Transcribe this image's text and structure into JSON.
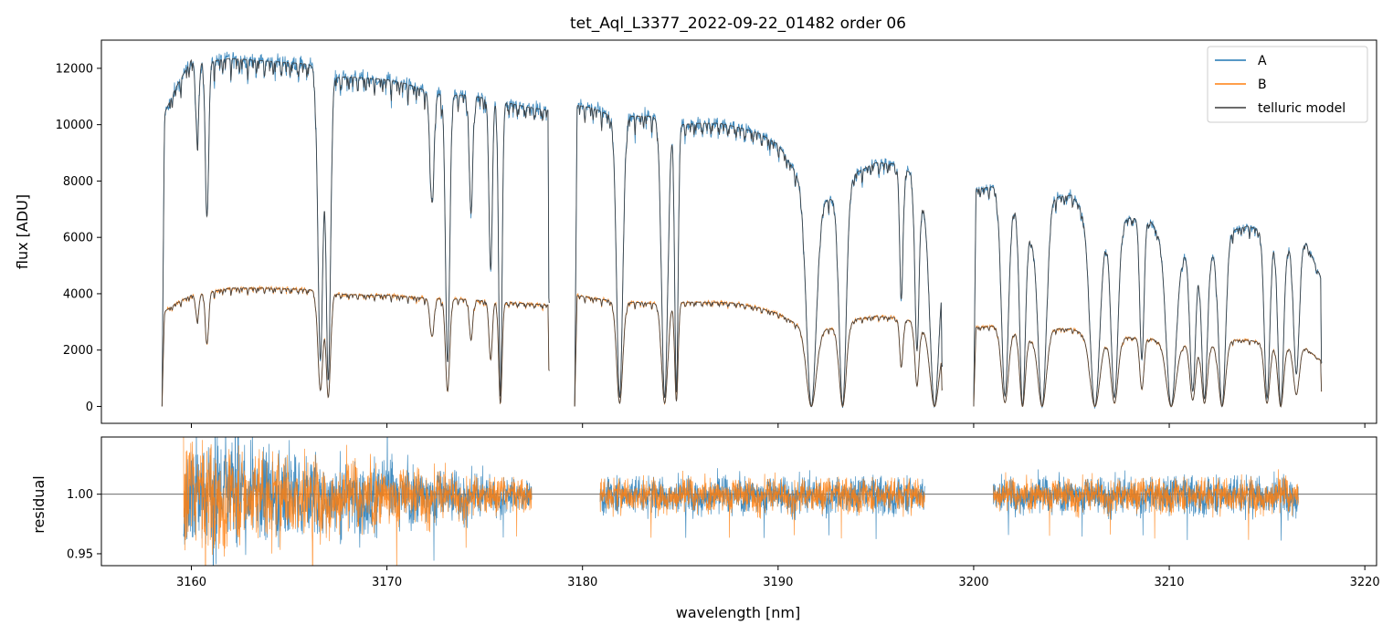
{
  "chart_data": [
    {
      "type": "line",
      "panel": "top",
      "title": "tet_Aql_L3377_2022-09-22_01482  order 06",
      "xlabel": "",
      "ylabel": "flux [ADU]",
      "xlim": [
        3155.4,
        3220.6
      ],
      "ylim": [
        -600,
        13000
      ],
      "x_ticks": [
        3160,
        3170,
        3180,
        3190,
        3200,
        3210,
        3220
      ],
      "x_tick_labels_visible": false,
      "y_ticks": [
        0,
        2000,
        4000,
        6000,
        8000,
        10000,
        12000
      ],
      "y_tick_labels": [
        "0",
        "2000",
        "4000",
        "6000",
        "8000",
        "10000",
        "12000"
      ],
      "legend": {
        "placement": "top-right",
        "entries": [
          "A",
          "B",
          "telluric model"
        ]
      },
      "segments": [
        {
          "range": [
            3158.5,
            3178.3
          ],
          "anchors_A": [
            [
              3158.5,
              10200
            ],
            [
              3159.2,
              11300
            ],
            [
              3160,
              12300
            ],
            [
              3161,
              12250
            ],
            [
              3162,
              12350
            ],
            [
              3163,
              12300
            ],
            [
              3164,
              12250
            ],
            [
              3165,
              12200
            ],
            [
              3166,
              12150
            ],
            [
              3167,
              11650
            ],
            [
              3168,
              11700
            ],
            [
              3169,
              11650
            ],
            [
              3170,
              11600
            ],
            [
              3171,
              11450
            ],
            [
              3172,
              11200
            ],
            [
              3173,
              11050
            ],
            [
              3174,
              11050
            ],
            [
              3175,
              10950
            ],
            [
              3176,
              10800
            ],
            [
              3177,
              10650
            ],
            [
              3178.3,
              10500
            ]
          ],
          "anchors_B": [
            [
              3158.5,
              3300
            ],
            [
              3159.2,
              3650
            ],
            [
              3160,
              3950
            ],
            [
              3162,
              4200
            ],
            [
              3164,
              4200
            ],
            [
              3166,
              4150
            ],
            [
              3167,
              4000
            ],
            [
              3169,
              3950
            ],
            [
              3170,
              3950
            ],
            [
              3172,
              3850
            ],
            [
              3174,
              3800
            ],
            [
              3176,
              3700
            ],
            [
              3178.3,
              3600
            ]
          ]
        },
        {
          "range": [
            3179.6,
            3198.4
          ],
          "anchors_A": [
            [
              3179.6,
              10700
            ],
            [
              3180.5,
              10600
            ],
            [
              3181.5,
              10300
            ],
            [
              3182.5,
              10300
            ],
            [
              3183.5,
              10300
            ],
            [
              3185,
              10000
            ],
            [
              3186,
              10050
            ],
            [
              3187,
              10050
            ],
            [
              3188,
              9900
            ],
            [
              3189,
              9700
            ],
            [
              3190,
              9300
            ],
            [
              3191,
              8200
            ],
            [
              3192,
              7300
            ],
            [
              3193,
              7400
            ],
            [
              3194,
              8300
            ],
            [
              3195,
              8650
            ],
            [
              3196,
              8600
            ],
            [
              3197,
              8200
            ],
            [
              3198.4,
              5000
            ]
          ],
          "anchors_B": [
            [
              3179.6,
              3950
            ],
            [
              3181,
              3800
            ],
            [
              3182.5,
              3700
            ],
            [
              3184,
              3650
            ],
            [
              3185,
              3700
            ],
            [
              3186,
              3700
            ],
            [
              3187,
              3700
            ],
            [
              3188,
              3650
            ],
            [
              3189,
              3500
            ],
            [
              3190,
              3300
            ],
            [
              3191,
              2900
            ],
            [
              3192,
              2700
            ],
            [
              3193,
              2800
            ],
            [
              3194,
              3100
            ],
            [
              3195,
              3200
            ],
            [
              3196,
              3150
            ],
            [
              3197,
              3000
            ],
            [
              3198.4,
              2100
            ]
          ]
        },
        {
          "range": [
            3200.0,
            3217.8
          ],
          "anchors_A": [
            [
              3200,
              7700
            ],
            [
              3201,
              7800
            ],
            [
              3202,
              7300
            ],
            [
              3203,
              6000
            ],
            [
              3204,
              7400
            ],
            [
              3205,
              7500
            ],
            [
              3206,
              6600
            ],
            [
              3207,
              6300
            ],
            [
              3208,
              6700
            ],
            [
              3209,
              6600
            ],
            [
              3210,
              5700
            ],
            [
              3211,
              5400
            ],
            [
              3212,
              5300
            ],
            [
              3213,
              6200
            ],
            [
              3214,
              6400
            ],
            [
              3215,
              6200
            ],
            [
              3216,
              5700
            ],
            [
              3217,
              5800
            ],
            [
              3217.8,
              4500
            ]
          ],
          "anchors_B": [
            [
              3200,
              2800
            ],
            [
              3201,
              2850
            ],
            [
              3202,
              2700
            ],
            [
              3203,
              2400
            ],
            [
              3204,
              2750
            ],
            [
              3205,
              2750
            ],
            [
              3206,
              2500
            ],
            [
              3207,
              2400
            ],
            [
              3208,
              2450
            ],
            [
              3209,
              2400
            ],
            [
              3210,
              2250
            ],
            [
              3211,
              2200
            ],
            [
              3212,
              2150
            ],
            [
              3213,
              2350
            ],
            [
              3214,
              2350
            ],
            [
              3215,
              2250
            ],
            [
              3216,
              2100
            ],
            [
              3217,
              2050
            ],
            [
              3217.8,
              1600
            ]
          ]
        }
      ],
      "absorption_lines": [
        {
          "center": 3160.3,
          "width": 0.12,
          "depth": 0.22
        },
        {
          "center": 3160.8,
          "width": 0.12,
          "depth": 0.45
        },
        {
          "center": 3166.6,
          "width": 0.18,
          "depth": 0.86
        },
        {
          "center": 3167.0,
          "width": 0.16,
          "depth": 0.92
        },
        {
          "center": 3172.3,
          "width": 0.15,
          "depth": 0.35
        },
        {
          "center": 3173.1,
          "width": 0.15,
          "depth": 0.86
        },
        {
          "center": 3174.3,
          "width": 0.12,
          "depth": 0.38
        },
        {
          "center": 3175.3,
          "width": 0.12,
          "depth": 0.55
        },
        {
          "center": 3175.8,
          "width": 0.12,
          "depth": 0.97
        },
        {
          "center": 3181.9,
          "width": 0.22,
          "depth": 0.97
        },
        {
          "center": 3184.2,
          "width": 0.22,
          "depth": 0.97
        },
        {
          "center": 3184.8,
          "width": 0.12,
          "depth": 0.95
        },
        {
          "center": 3191.7,
          "width": 0.35,
          "depth": 1.0
        },
        {
          "center": 3193.3,
          "width": 0.25,
          "depth": 1.0
        },
        {
          "center": 3196.3,
          "width": 0.12,
          "depth": 0.55
        },
        {
          "center": 3197.1,
          "width": 0.15,
          "depth": 0.75
        },
        {
          "center": 3198.0,
          "width": 0.3,
          "depth": 1.0
        },
        {
          "center": 3201.6,
          "width": 0.25,
          "depth": 0.95
        },
        {
          "center": 3202.5,
          "width": 0.2,
          "depth": 1.0
        },
        {
          "center": 3203.5,
          "width": 0.3,
          "depth": 1.0
        },
        {
          "center": 3206.2,
          "width": 0.35,
          "depth": 1.0
        },
        {
          "center": 3207.2,
          "width": 0.25,
          "depth": 0.95
        },
        {
          "center": 3208.6,
          "width": 0.15,
          "depth": 0.75
        },
        {
          "center": 3210.1,
          "width": 0.35,
          "depth": 1.0
        },
        {
          "center": 3211.2,
          "width": 0.2,
          "depth": 0.9
        },
        {
          "center": 3211.8,
          "width": 0.2,
          "depth": 0.95
        },
        {
          "center": 3212.7,
          "width": 0.25,
          "depth": 1.0
        },
        {
          "center": 3215.0,
          "width": 0.2,
          "depth": 0.95
        },
        {
          "center": 3215.7,
          "width": 0.2,
          "depth": 1.0
        },
        {
          "center": 3216.5,
          "width": 0.2,
          "depth": 0.8
        }
      ],
      "series": [
        {
          "name": "A",
          "color": "#1f77b4"
        },
        {
          "name": "B",
          "color": "#ff7f0e"
        },
        {
          "name": "telluric model",
          "color": "#3a3a3a"
        }
      ]
    },
    {
      "type": "line",
      "panel": "bottom",
      "xlabel": "wavelength [nm]",
      "ylabel": "residual",
      "xlim": [
        3155.4,
        3220.6
      ],
      "ylim": [
        0.94,
        1.048
      ],
      "x_ticks": [
        3160,
        3170,
        3180,
        3190,
        3200,
        3210,
        3220
      ],
      "x_tick_labels": [
        "3160",
        "3170",
        "3180",
        "3190",
        "3200",
        "3210",
        "3220"
      ],
      "y_ticks": [
        0.95,
        1.0
      ],
      "y_tick_labels": [
        "0.95",
        "1.00"
      ],
      "reference_line": 1.0,
      "segments": [
        {
          "range": [
            3159.6,
            3177.4
          ],
          "noise_start": 0.045,
          "noise_end": 0.012
        },
        {
          "range": [
            3180.9,
            3197.5
          ],
          "noise_start": 0.014,
          "noise_end": 0.014
        },
        {
          "range": [
            3201.0,
            3216.6
          ],
          "noise_start": 0.013,
          "noise_end": 0.015
        }
      ],
      "series": [
        {
          "name": "A",
          "color": "#1f77b4"
        },
        {
          "name": "B",
          "color": "#ff7f0e"
        }
      ]
    }
  ]
}
